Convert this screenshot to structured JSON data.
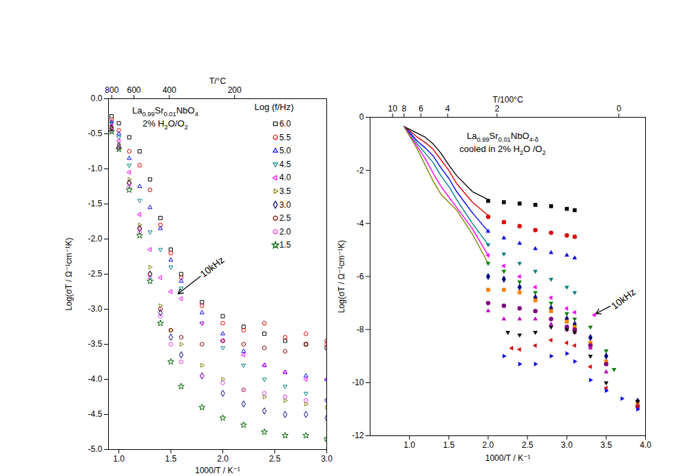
{
  "chart_data": [
    {
      "type": "scatter",
      "xlabel": "1000/T / K⁻¹",
      "ylabel": "Log(σT / Ω⁻¹cm⁻¹K)",
      "x2label": "T/°C",
      "notes": [
        "La0.99Sr0.01NbO4",
        "2% H2O/O2"
      ],
      "legend": "top-right",
      "legend_title": "Log (f/Hz)",
      "xlim": [
        0.9,
        3.0
      ],
      "xticks": [
        {
          "value": 1,
          "label": "1.0"
        },
        1.5,
        {
          "value": 2,
          "label": "2.0"
        },
        2.5,
        {
          "value": 3,
          "label": "3.0"
        }
      ],
      "ylim": [
        -5.0,
        0.0
      ],
      "yticks": [
        {
          "value": -5,
          "label": "-5.0"
        },
        -4.5,
        {
          "value": -4,
          "label": "-4.0"
        },
        -3.5,
        {
          "value": -3,
          "label": "-3.0"
        },
        -2.5,
        {
          "value": -2,
          "label": "-2.0"
        },
        -1.5,
        {
          "value": -1,
          "label": "-1.0"
        },
        -0.5,
        {
          "value": 0,
          "label": "0.0"
        }
      ],
      "x2ticks": [
        800,
        600,
        400,
        200
      ],
      "annotations": [
        {
          "text": "10kHz",
          "x": 1.9,
          "y": -2.4,
          "point": [
            1.57,
            -2.78
          ]
        }
      ],
      "series": [
        {
          "name": "6.0",
          "color": "#000000",
          "marker": "square",
          "x": [
            0.93,
            1.0,
            1.1,
            1.2,
            1.3,
            1.4,
            1.5,
            1.6,
            1.8,
            2.0,
            2.2,
            2.4,
            2.6,
            2.8,
            3.0
          ],
          "values": [
            -0.25,
            -0.35,
            -0.55,
            -0.75,
            -1.15,
            -1.7,
            -2.15,
            -2.5,
            -2.9,
            -3.1,
            -3.25,
            -3.35,
            -3.45,
            -3.5,
            -3.55
          ]
        },
        {
          "name": "5.5",
          "color": "#e00000",
          "marker": "circle",
          "x": [
            0.93,
            1.0,
            1.1,
            1.2,
            1.3,
            1.4,
            1.5,
            1.6,
            1.8,
            2.0,
            2.2,
            2.4,
            2.6,
            2.8,
            3.0
          ],
          "values": [
            -0.3,
            -0.45,
            -0.75,
            -0.95,
            -1.3,
            -1.8,
            -2.2,
            -2.55,
            -2.95,
            -3.2,
            -3.3,
            -3.2,
            -3.4,
            -3.35,
            -3.5
          ]
        },
        {
          "name": "5.0",
          "color": "#0000ff",
          "marker": "triangle",
          "x": [
            0.93,
            1.0,
            1.1,
            1.2,
            1.3,
            1.4,
            1.5,
            1.6,
            1.8,
            2.0,
            2.2,
            2.4,
            2.6,
            2.8,
            3.0
          ],
          "values": [
            -0.33,
            -0.5,
            -0.85,
            -1.25,
            -1.55,
            -1.85,
            -2.3,
            -2.6,
            -3.05,
            -3.35,
            -3.6,
            -3.8,
            -3.9,
            -3.95,
            -4.0
          ]
        },
        {
          "name": "4.5",
          "color": "#008080",
          "marker": "triangle-down",
          "x": [
            0.93,
            1.0,
            1.1,
            1.2,
            1.3,
            1.4,
            1.5,
            1.6,
            1.8,
            2.0,
            2.2,
            2.4,
            2.6,
            2.8,
            3.0
          ],
          "values": [
            -0.35,
            -0.55,
            -0.95,
            -1.45,
            -1.9,
            -2.15,
            -2.4,
            -2.7,
            -3.2,
            -3.55,
            -3.8,
            -4.0,
            -4.1,
            -4.2,
            -4.3
          ]
        },
        {
          "name": "4.0",
          "color": "#ff00ff",
          "marker": "triangle-left",
          "x": [
            0.93,
            1.0,
            1.1,
            1.2,
            1.3,
            1.4,
            1.5,
            1.6,
            1.8,
            2.0,
            2.2,
            2.4,
            2.6,
            2.8,
            3.0
          ],
          "values": [
            -0.38,
            -0.6,
            -1.05,
            -1.65,
            -2.15,
            -2.55,
            -2.75,
            -2.85,
            -3.2,
            -3.45,
            -3.65,
            -3.8,
            -3.9,
            -4.0,
            -4.0
          ]
        },
        {
          "name": "3.5",
          "color": "#808000",
          "marker": "triangle-right",
          "x": [
            0.93,
            1.0,
            1.1,
            1.2,
            1.3,
            1.4,
            1.5,
            1.6,
            1.8,
            2.0,
            2.2,
            2.4,
            2.6,
            2.8,
            3.0
          ],
          "values": [
            -0.4,
            -0.65,
            -1.15,
            -1.8,
            -2.4,
            -2.95,
            -3.3,
            -3.5,
            -3.8,
            -4.0,
            -4.15,
            -4.25,
            -4.3,
            -4.35,
            -4.4
          ]
        },
        {
          "name": "3.0",
          "color": "#000080",
          "marker": "diamond",
          "x": [
            0.93,
            1.0,
            1.1,
            1.2,
            1.3,
            1.4,
            1.5,
            1.6,
            1.8,
            2.0,
            2.2,
            2.4,
            2.6,
            2.8,
            3.0
          ],
          "values": [
            -0.42,
            -0.68,
            -1.2,
            -1.85,
            -2.5,
            -3.05,
            -3.4,
            -3.65,
            -3.95,
            -4.2,
            -4.35,
            -4.45,
            -4.5,
            -4.5,
            -4.55
          ]
        },
        {
          "name": "2.5",
          "color": "#800000",
          "marker": "hexagon",
          "x": [
            0.93,
            1.0,
            1.1,
            1.2,
            1.3,
            1.4,
            1.5,
            1.6,
            1.8,
            2.0,
            2.2,
            2.4,
            2.6,
            2.8,
            3.0
          ],
          "values": [
            -0.43,
            -0.7,
            -1.2,
            -1.85,
            -2.5,
            -3.0,
            -3.3,
            -3.4,
            -3.5,
            -3.45,
            -3.5,
            -3.55,
            -3.6,
            -3.5,
            -3.45
          ]
        },
        {
          "name": "2.0",
          "color": "#e040e0",
          "marker": "circle",
          "x": [
            0.93,
            1.0,
            1.1,
            1.2,
            1.3,
            1.4,
            1.5,
            1.6,
            1.8,
            2.0,
            2.2,
            2.4,
            2.6,
            2.8,
            3.0
          ],
          "values": [
            -0.45,
            -0.7,
            -1.25,
            -1.9,
            -2.55,
            -3.1,
            -3.5,
            -3.75,
            -3.95,
            -4.05,
            -4.15,
            -4.2,
            -4.25,
            -4.3,
            -4.3
          ]
        },
        {
          "name": "1.5",
          "color": "#006400",
          "marker": "star",
          "x": [
            0.93,
            1.0,
            1.1,
            1.2,
            1.3,
            1.4,
            1.5,
            1.6,
            1.8,
            2.0,
            2.2,
            2.4,
            2.6,
            2.8,
            3.0
          ],
          "values": [
            -0.47,
            -0.72,
            -1.3,
            -1.95,
            -2.6,
            -3.2,
            -3.75,
            -4.1,
            -4.4,
            -4.55,
            -4.65,
            -4.75,
            -4.8,
            -4.8,
            -4.85
          ]
        }
      ]
    },
    {
      "type": "scatter",
      "xlabel": "1000/T / K⁻¹",
      "ylabel": "Log(σT / Ω⁻¹cm⁻¹K)",
      "x2label": "T/100°C",
      "notes": [
        "La0.99Sr0.01NbO4-δ",
        "cooled in 2% H2O /O2"
      ],
      "xlim": [
        0.5,
        4.0
      ],
      "xticks": [
        {
          "value": 1,
          "label": "1.0"
        },
        1.5,
        {
          "value": 2,
          "label": "2.0"
        },
        2.5,
        {
          "value": 3,
          "label": "3.0"
        },
        3.5,
        {
          "value": 4,
          "label": "4.0"
        }
      ],
      "ylim": [
        -12,
        0
      ],
      "yticks": [
        -12,
        -10,
        -8,
        -6,
        -4,
        -2,
        0
      ],
      "x2ticks": [
        {
          "value": 1000,
          "label": "10"
        },
        {
          "value": 800,
          "label": "8"
        },
        {
          "value": 600,
          "label": "6"
        },
        {
          "value": 400,
          "label": "4"
        },
        {
          "value": 200,
          "label": "2"
        },
        {
          "value": 0,
          "label": "0"
        }
      ],
      "annotations": [
        {
          "text": "10kHz",
          "x": 3.72,
          "y": -6.85,
          "point": [
            3.37,
            -7.4
          ]
        }
      ],
      "series": [
        {
          "type": "line",
          "color": "#000000",
          "x": [
            0.93,
            1.0,
            1.1,
            1.2,
            1.3,
            1.4,
            1.5,
            1.6,
            1.8,
            2.0
          ],
          "values": [
            -0.35,
            -0.45,
            -0.6,
            -0.75,
            -1.0,
            -1.35,
            -1.8,
            -2.2,
            -2.8,
            -3.1
          ]
        },
        {
          "type": "line",
          "color": "#e00000",
          "x": [
            0.93,
            1.0,
            1.1,
            1.2,
            1.3,
            1.4,
            1.5,
            1.6,
            1.8,
            2.0
          ],
          "values": [
            -0.35,
            -0.5,
            -0.75,
            -0.95,
            -1.2,
            -1.6,
            -2.0,
            -2.5,
            -3.2,
            -3.7
          ]
        },
        {
          "type": "line",
          "color": "#0000ff",
          "x": [
            0.93,
            1.0,
            1.1,
            1.2,
            1.3,
            1.4,
            1.5,
            1.6,
            1.8,
            2.0
          ],
          "values": [
            -0.35,
            -0.55,
            -0.9,
            -1.15,
            -1.45,
            -1.9,
            -2.3,
            -2.8,
            -3.6,
            -4.3
          ]
        },
        {
          "type": "line",
          "color": "#008080",
          "x": [
            0.93,
            1.0,
            1.1,
            1.2,
            1.3,
            1.4,
            1.5,
            1.6,
            1.8,
            2.0
          ],
          "values": [
            -0.35,
            -0.6,
            -1.0,
            -1.35,
            -1.7,
            -2.2,
            -2.6,
            -3.1,
            -4.0,
            -4.8
          ]
        },
        {
          "type": "line",
          "color": "#ff00ff",
          "x": [
            0.93,
            1.0,
            1.1,
            1.2,
            1.3,
            1.4,
            1.5,
            1.6,
            1.8,
            2.0
          ],
          "values": [
            -0.35,
            -0.65,
            -1.1,
            -1.55,
            -2.1,
            -2.6,
            -3.0,
            -3.4,
            -4.2,
            -5.2
          ]
        },
        {
          "type": "line",
          "color": "#808000",
          "x": [
            0.93,
            1.0,
            1.1,
            1.2,
            1.3,
            1.4,
            1.5,
            1.6,
            1.8,
            2.0
          ],
          "values": [
            -0.35,
            -0.7,
            -1.2,
            -1.8,
            -2.4,
            -2.9,
            -3.2,
            -3.5,
            -4.4,
            -5.5
          ]
        },
        {
          "color": "#000000",
          "marker": "square",
          "x": [
            2.0,
            2.2,
            2.4,
            2.6,
            2.8,
            3.0,
            3.1
          ],
          "values": [
            -3.15,
            -3.2,
            -3.25,
            -3.3,
            -3.35,
            -3.45,
            -3.5
          ]
        },
        {
          "color": "#e00000",
          "marker": "circle",
          "x": [
            2.0,
            2.2,
            2.4,
            2.6,
            2.8,
            3.0,
            3.1
          ],
          "values": [
            -3.75,
            -3.95,
            -4.1,
            -4.25,
            -4.35,
            -4.45,
            -4.5
          ]
        },
        {
          "color": "#0000ff",
          "marker": "triangle",
          "x": [
            2.0,
            2.2,
            2.4,
            2.6,
            2.8,
            3.0,
            3.1
          ],
          "values": [
            -4.3,
            -4.55,
            -4.75,
            -4.95,
            -5.1,
            -5.2,
            -5.3
          ]
        },
        {
          "color": "#008080",
          "marker": "triangle-down",
          "x": [
            2.0,
            2.2,
            2.4,
            2.6,
            2.8,
            3.0,
            3.1
          ],
          "values": [
            -4.8,
            -5.15,
            -5.5,
            -5.8,
            -6.1,
            -6.4,
            -6.6
          ]
        },
        {
          "color": "#ff00ff",
          "marker": "triangle-left",
          "x": [
            2.0,
            2.2,
            2.4,
            2.6,
            2.8,
            3.0,
            3.1,
            3.35
          ],
          "values": [
            -5.2,
            -5.6,
            -6.0,
            -6.4,
            -6.8,
            -7.2,
            -7.35,
            -7.45
          ]
        },
        {
          "color": "#008000",
          "marker": "triangle-down",
          "x": [
            2.0,
            2.2,
            2.4,
            2.6,
            2.8,
            3.0,
            3.1,
            3.3,
            3.5,
            3.6
          ],
          "values": [
            -5.5,
            -5.8,
            -6.2,
            -6.6,
            -7.0,
            -7.4,
            -7.6,
            -7.9,
            -8.8,
            -9.5
          ]
        },
        {
          "color": "#000080",
          "marker": "diamond",
          "x": [
            2.0,
            2.2,
            2.4,
            2.6,
            2.8,
            3.0,
            3.1,
            3.3,
            3.5,
            3.9
          ],
          "values": [
            -6.0,
            -6.1,
            -6.4,
            -6.8,
            -7.2,
            -7.6,
            -7.8,
            -8.3,
            -9.0,
            -10.7
          ]
        },
        {
          "color": "#ff8000",
          "marker": "square",
          "x": [
            2.0,
            2.2,
            2.4,
            2.6,
            2.8,
            3.0,
            3.1,
            3.3,
            3.5,
            3.9
          ],
          "values": [
            -6.5,
            -6.5,
            -6.6,
            -6.9,
            -7.3,
            -7.7,
            -7.9,
            -8.5,
            -9.2,
            -10.8
          ]
        },
        {
          "color": "#800080",
          "marker": "circle",
          "x": [
            2.0,
            2.2,
            2.4,
            2.6,
            2.8,
            3.0,
            3.1,
            3.3,
            3.5,
            3.9
          ],
          "values": [
            -7.0,
            -7.1,
            -7.2,
            -7.3,
            -7.6,
            -7.9,
            -8.0,
            -8.6,
            -9.3,
            -10.9
          ]
        },
        {
          "color": "#c000c0",
          "marker": "triangle",
          "x": [
            2.0,
            2.2,
            2.4,
            2.6,
            2.8,
            3.0,
            3.1,
            3.3,
            3.5
          ],
          "values": [
            -7.3,
            -7.6,
            -7.6,
            -7.6,
            -7.8,
            -8.0,
            -8.1,
            -8.7,
            -9.6
          ]
        },
        {
          "color": "#000000",
          "marker": "triangle-down",
          "x": [
            2.25,
            2.4,
            2.6,
            2.8,
            3.0,
            3.1,
            3.3,
            3.5,
            3.9
          ],
          "values": [
            -8.1,
            -8.2,
            -8.1,
            -7.9,
            -8.0,
            -8.1,
            -9.0,
            -10.0,
            -10.7
          ]
        },
        {
          "color": "#e00000",
          "marker": "triangle-left",
          "x": [
            2.3,
            2.4,
            2.6,
            2.8,
            3.0,
            3.1,
            3.3,
            3.5,
            3.9
          ],
          "values": [
            -8.7,
            -8.75,
            -8.6,
            -8.4,
            -8.5,
            -8.6,
            -9.4,
            -10.2,
            -10.9
          ]
        },
        {
          "color": "#0000ff",
          "marker": "triangle-right",
          "x": [
            2.2,
            2.4,
            2.6,
            2.8,
            3.0,
            3.1,
            3.3,
            3.5,
            3.7,
            3.9
          ],
          "values": [
            -9.0,
            -9.3,
            -9.3,
            -9.0,
            -8.9,
            -9.2,
            -9.9,
            -10.3,
            -10.6,
            -11.0
          ]
        }
      ]
    }
  ]
}
